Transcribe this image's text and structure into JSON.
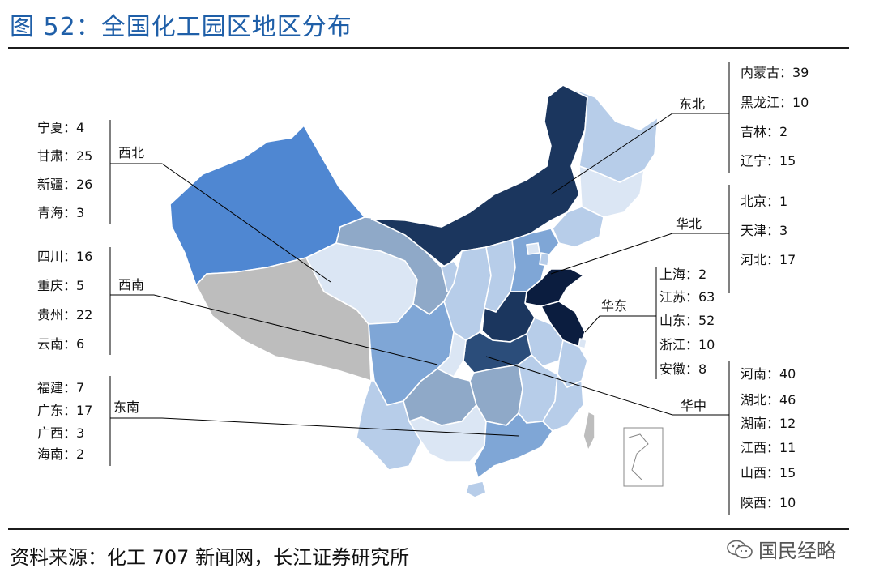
{
  "title": "图 52：全国化工园区地区分布",
  "source": "资料来源：化工 707 新闻网，长江证券研究所",
  "watermark": "国民经略",
  "regions": {
    "northwest": {
      "name": "西北",
      "items": [
        "宁夏：4",
        "甘肃：25",
        "新疆：26",
        "青海：3"
      ]
    },
    "southwest": {
      "name": "西南",
      "items": [
        "四川：16",
        "重庆：5",
        "贵州：22",
        "云南：6"
      ]
    },
    "southeast": {
      "name": "东南",
      "items": [
        "福建：7",
        "广东：17",
        "广西：3",
        "海南：2"
      ]
    },
    "northeast": {
      "name": "东北",
      "items": [
        "内蒙古：39",
        "黑龙江：10",
        "吉林：2",
        "辽宁：15"
      ]
    },
    "north": {
      "name": "华北",
      "items": [
        "北京：1",
        "天津：3",
        "河北：17"
      ]
    },
    "east": {
      "name": "华东",
      "items": [
        "上海：2",
        "江苏：63",
        "山东：52",
        "浙江：10",
        "安徽：8"
      ]
    },
    "central": {
      "name": "华中",
      "items": [
        "河南：40",
        "湖北：46",
        "湖南：12",
        "江西：11",
        "山西：15",
        "陕西：10"
      ]
    }
  },
  "colors": {
    "darkest": "#0b1d3f",
    "dark": "#1b365e",
    "mid_dark": "#2b4d7a",
    "bright_blue": "#4f87d2",
    "mid": "#7fa6d6",
    "steel": "#8fa9c8",
    "light": "#b7cde9",
    "pale": "#dbe6f4",
    "gray": "#bdbdbd",
    "title_blue": "#1f5fa8"
  }
}
